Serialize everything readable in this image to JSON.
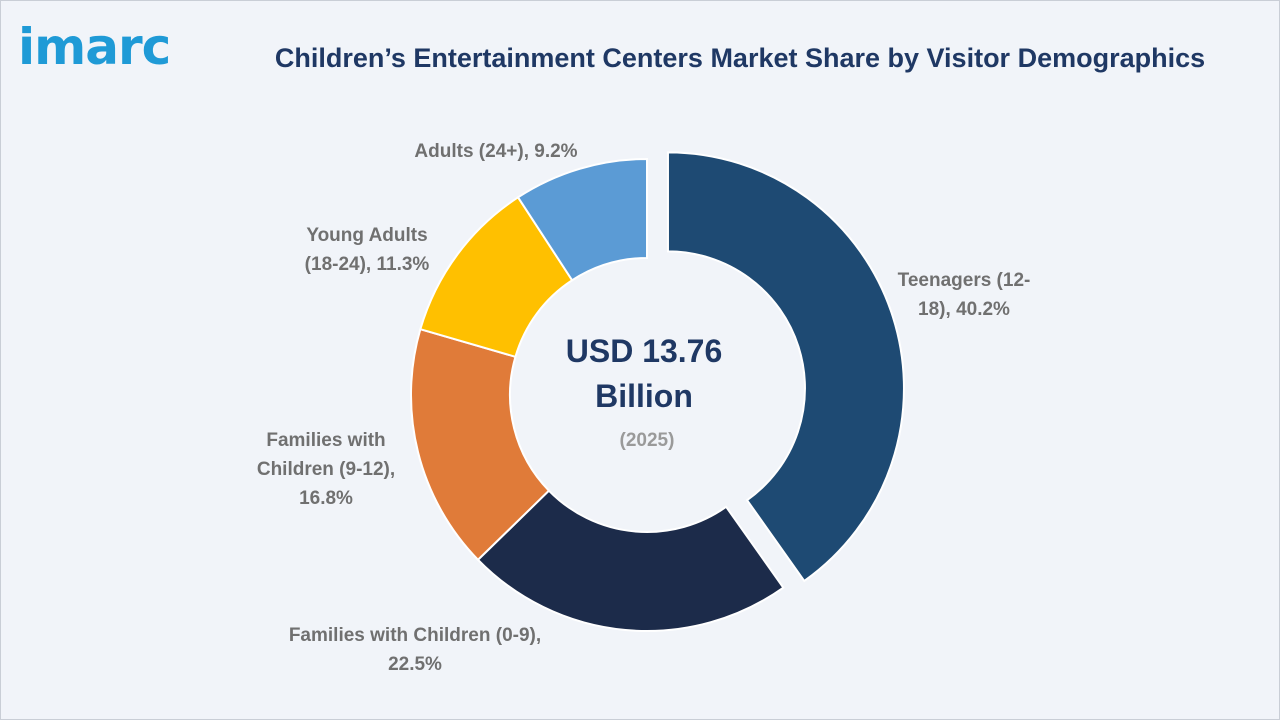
{
  "brand": {
    "logo_text": "imarc",
    "logo_color": "#1f9ad6"
  },
  "title_color": "#1f3864",
  "chart_data": {
    "type": "pie",
    "variant": "donut",
    "title": "Children’s Entertainment Centers Market Share by Visitor Demographics",
    "unit": "%",
    "center_label": {
      "value_line1": "USD 13.76",
      "value_line2": "Billion",
      "year": "(2025)"
    },
    "slices": [
      {
        "label_lines": [
          "Teenagers (12-",
          "18), 40.2%"
        ],
        "value": 40.2,
        "color": "#1e4a73",
        "exploded": true
      },
      {
        "label_lines": [
          "Families with Children (0-9),",
          "22.5%"
        ],
        "value": 22.5,
        "color": "#1c2b4a",
        "exploded": false
      },
      {
        "label_lines": [
          "Families with",
          "Children (9-12),",
          "16.8%"
        ],
        "value": 16.8,
        "color": "#e07b39",
        "exploded": false
      },
      {
        "label_lines": [
          "Young Adults",
          "(18-24), 11.3%"
        ],
        "value": 11.3,
        "color": "#ffc000",
        "exploded": false
      },
      {
        "label_lines": [
          "Adults (24+), 9.2%"
        ],
        "value": 9.2,
        "color": "#5b9bd5",
        "exploded": false
      }
    ]
  }
}
